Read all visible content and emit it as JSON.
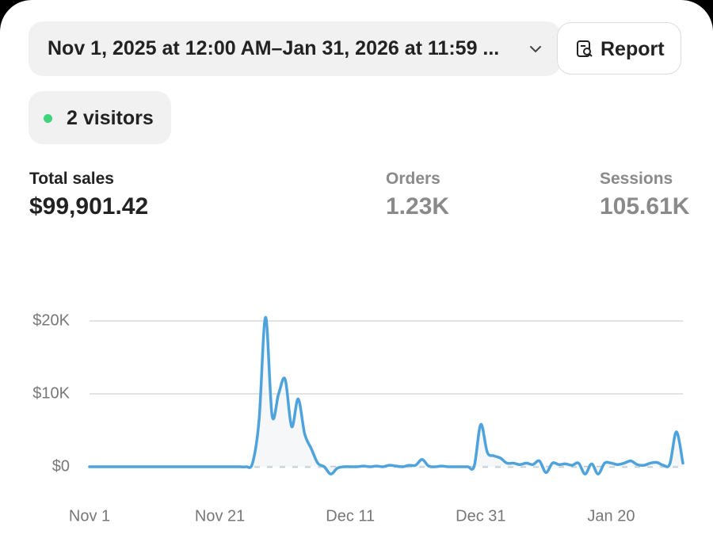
{
  "header": {
    "date_range": "Nov 1, 2025 at 12:00 AM–Jan 31, 2026 at 11:59 ...",
    "report_button": "Report",
    "visitors": "2 visitors"
  },
  "metrics": [
    {
      "label": "Total sales",
      "value": "$99,901.42"
    },
    {
      "label": "Orders",
      "value": "1.23K"
    },
    {
      "label": "Sessions",
      "value": "105.61K"
    }
  ],
  "chart_data": {
    "type": "line",
    "categories": [
      "Nov 1",
      null,
      null,
      null,
      null,
      null,
      null,
      null,
      null,
      null,
      null,
      null,
      null,
      null,
      null,
      null,
      null,
      null,
      null,
      null,
      "Nov 21",
      null,
      null,
      null,
      null,
      null,
      null,
      null,
      null,
      null,
      null,
      null,
      null,
      null,
      null,
      null,
      null,
      null,
      null,
      null,
      "Dec 11",
      null,
      null,
      null,
      null,
      null,
      null,
      null,
      null,
      null,
      null,
      null,
      null,
      null,
      null,
      null,
      null,
      null,
      null,
      null,
      "Dec 31",
      null,
      null,
      null,
      null,
      null,
      null,
      null,
      null,
      null,
      null,
      null,
      null,
      null,
      null,
      null,
      null,
      null,
      null,
      null,
      "Jan 20",
      null,
      null,
      null,
      null,
      null,
      null,
      null,
      null,
      null,
      null,
      null
    ],
    "series": [
      {
        "name": "Total sales",
        "color": "#4ea3dd",
        "values": [
          0,
          0,
          0,
          0,
          0,
          0,
          0,
          0,
          0,
          0,
          0,
          0,
          0,
          0,
          0,
          0,
          0,
          0,
          0,
          0,
          0,
          0,
          0,
          0,
          0,
          500,
          6400,
          20500,
          7000,
          10000,
          12000,
          5500,
          9300,
          4500,
          2500,
          500,
          0,
          -1000,
          -200,
          0,
          0,
          0,
          100,
          0,
          100,
          0,
          200,
          100,
          0,
          200,
          200,
          1000,
          100,
          0,
          100,
          0,
          0,
          0,
          0,
          100,
          5800,
          2000,
          1500,
          1200,
          500,
          500,
          300,
          500,
          300,
          800,
          -800,
          500,
          300,
          400,
          200,
          500,
          -1000,
          400,
          -1000,
          500,
          500,
          300,
          500,
          800,
          300,
          200,
          500,
          600,
          200,
          400,
          4800,
          500
        ]
      }
    ],
    "ylim": [
      -2000,
      21000
    ],
    "yticks": [
      {
        "value": 0,
        "label": "$0"
      },
      {
        "value": 10000,
        "label": "$10K"
      },
      {
        "value": 20000,
        "label": "$20K"
      }
    ],
    "grid": true
  }
}
